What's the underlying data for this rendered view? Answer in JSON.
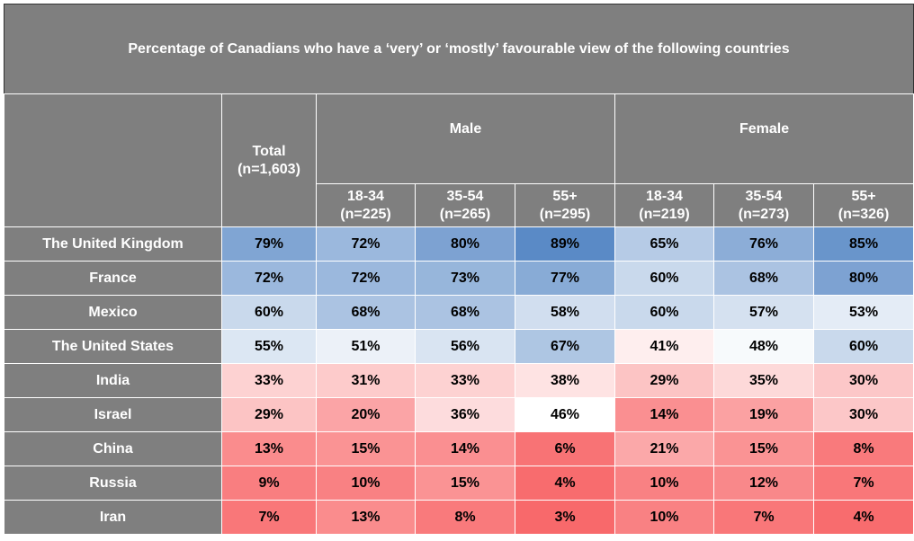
{
  "chart_data": {
    "type": "table",
    "title": "Percentage of Canadians who have a ‘very’ or ‘mostly’ favourable view of the following countries",
    "total": {
      "label": "Total",
      "n": "(n=1,603)"
    },
    "groups": [
      {
        "name": "Male",
        "columns": [
          {
            "age": "18-34",
            "n": "(n=225)"
          },
          {
            "age": "35-54",
            "n": "(n=265)"
          },
          {
            "age": "55+",
            "n": "(n=295)"
          }
        ]
      },
      {
        "name": "Female",
        "columns": [
          {
            "age": "18-34",
            "n": "(n=219)"
          },
          {
            "age": "35-54",
            "n": "(n=273)"
          },
          {
            "age": "55+",
            "n": "(n=326)"
          }
        ]
      }
    ],
    "rows": [
      {
        "country": "The United Kingdom",
        "values": [
          79,
          72,
          80,
          89,
          65,
          76,
          85
        ]
      },
      {
        "country": "France",
        "values": [
          72,
          72,
          73,
          77,
          60,
          68,
          80
        ]
      },
      {
        "country": "Mexico",
        "values": [
          60,
          68,
          68,
          58,
          60,
          57,
          53
        ]
      },
      {
        "country": "The United States",
        "values": [
          55,
          51,
          56,
          67,
          41,
          48,
          60
        ]
      },
      {
        "country": "India",
        "values": [
          33,
          31,
          33,
          38,
          29,
          35,
          30
        ]
      },
      {
        "country": "Israel",
        "values": [
          29,
          20,
          36,
          46,
          14,
          19,
          30
        ]
      },
      {
        "country": "China",
        "values": [
          13,
          15,
          14,
          6,
          21,
          15,
          8
        ]
      },
      {
        "country": "Russia",
        "values": [
          9,
          10,
          15,
          4,
          10,
          12,
          7
        ]
      },
      {
        "country": "Iran",
        "values": [
          7,
          13,
          8,
          3,
          10,
          7,
          4
        ]
      }
    ],
    "value_suffix": "%",
    "colors": {
      "header": "#7f7f7f",
      "low": "#f8696b",
      "mid": "#ffffff",
      "high": "#5a8ac6"
    }
  }
}
